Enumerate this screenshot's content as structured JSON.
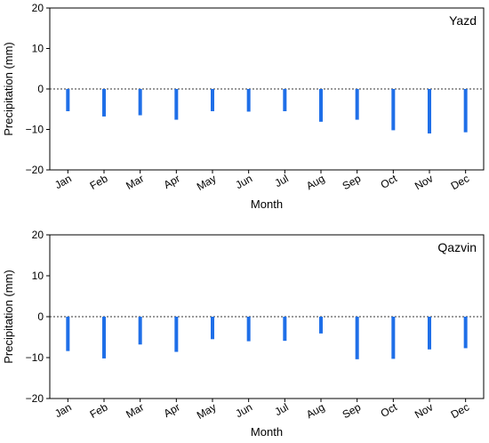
{
  "chart_data": [
    {
      "type": "bar",
      "station_label": "Yazd",
      "xlabel": "Month",
      "ylabel": "Precipitation (mm)",
      "ylim": [
        -20,
        20
      ],
      "yticks": [
        20,
        10,
        0,
        -10,
        -20
      ],
      "yticklabels": [
        "20",
        "10",
        "0",
        "−10",
        "−20"
      ],
      "categories": [
        "Jan",
        "Feb",
        "Mar",
        "Apr",
        "May",
        "Jun",
        "Jul",
        "Aug",
        "Sep",
        "Oct",
        "Nov",
        "Dec"
      ],
      "values": [
        -5.5,
        -6.8,
        -6.5,
        -7.6,
        -5.5,
        -5.6,
        -5.5,
        -8.1,
        -7.6,
        -10.2,
        -11.0,
        -10.7
      ],
      "zero_line": "dotted",
      "grid": false,
      "bar_color": "#1f6fe8"
    },
    {
      "type": "bar",
      "station_label": "Qazvin",
      "xlabel": "Month",
      "ylabel": "Precipitation (mm)",
      "ylim": [
        -20,
        20
      ],
      "yticks": [
        20,
        10,
        0,
        -10,
        -20
      ],
      "yticklabels": [
        "20",
        "10",
        "0",
        "−10",
        "−20"
      ],
      "categories": [
        "Jan",
        "Feb",
        "Mar",
        "Apr",
        "May",
        "Jun",
        "Jul",
        "Aug",
        "Sep",
        "Oct",
        "Nov",
        "Dec"
      ],
      "values": [
        -8.4,
        -10.2,
        -6.8,
        -8.6,
        -5.5,
        -6.0,
        -5.9,
        -4.1,
        -10.4,
        -10.3,
        -8.0,
        -7.7
      ],
      "zero_line": "dotted",
      "grid": false,
      "bar_color": "#1f6fe8"
    }
  ]
}
